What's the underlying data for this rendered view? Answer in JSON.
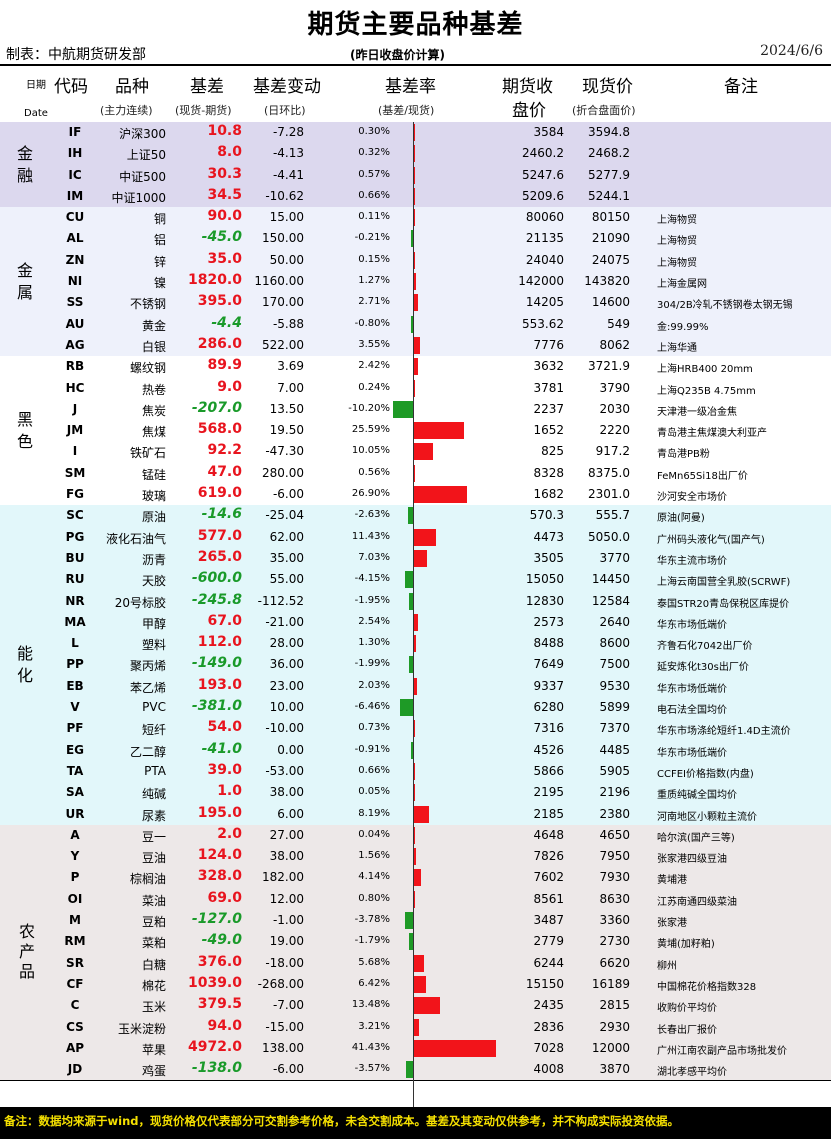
{
  "title": "期货主要品种基差",
  "maker": "制表：中航期货研发部",
  "subtitle": "(昨日收盘价计算)",
  "date": "2024/6/6",
  "header": {
    "date_label": "日期",
    "date_en": "Date",
    "code": "代码",
    "name": "品种",
    "name_sub": "(主力连续)",
    "basis": "基差",
    "basis_sub": "(现货-期货)",
    "chg": "基差变动",
    "chg_sub": "(日环比)",
    "rate": "基差率",
    "rate_sub": "(基差/现货)",
    "fut_1": "期货收",
    "fut_2": "盘价",
    "spot": "现货价",
    "spot_sub": "(折合盘面价)",
    "note": "备注"
  },
  "groups": [
    {
      "name": "金融",
      "bg": "#dcd8ee",
      "rows": [
        {
          "code": "IF",
          "name": "沪深300",
          "basis": "10.8",
          "chg": "-7.28",
          "rate": "0.30%",
          "r": 0.3,
          "fut": "3584",
          "spot": "3594.8",
          "note": ""
        },
        {
          "code": "IH",
          "name": "上证50",
          "basis": "8.0",
          "chg": "-4.13",
          "rate": "0.32%",
          "r": 0.32,
          "fut": "2460.2",
          "spot": "2468.2",
          "note": ""
        },
        {
          "code": "IC",
          "name": "中证500",
          "basis": "30.3",
          "chg": "-4.41",
          "rate": "0.57%",
          "r": 0.57,
          "fut": "5247.6",
          "spot": "5277.9",
          "note": ""
        },
        {
          "code": "IM",
          "name": "中证1000",
          "basis": "34.5",
          "chg": "-10.62",
          "rate": "0.66%",
          "r": 0.66,
          "fut": "5209.6",
          "spot": "5244.1",
          "note": ""
        }
      ]
    },
    {
      "name": "金属",
      "bg": "#eef1fb",
      "rows": [
        {
          "code": "CU",
          "name": "铜",
          "basis": "90.0",
          "chg": "15.00",
          "rate": "0.11%",
          "r": 0.11,
          "fut": "80060",
          "spot": "80150",
          "note": "上海物贸"
        },
        {
          "code": "AL",
          "name": "铝",
          "basis": "-45.0",
          "chg": "150.00",
          "rate": "-0.21%",
          "r": -0.21,
          "fut": "21135",
          "spot": "21090",
          "note": "上海物贸"
        },
        {
          "code": "ZN",
          "name": "锌",
          "basis": "35.0",
          "chg": "50.00",
          "rate": "0.15%",
          "r": 0.15,
          "fut": "24040",
          "spot": "24075",
          "note": "上海物贸"
        },
        {
          "code": "NI",
          "name": "镍",
          "basis": "1820.0",
          "chg": "1160.00",
          "rate": "1.27%",
          "r": 1.27,
          "fut": "142000",
          "spot": "143820",
          "note": "上海金属网"
        },
        {
          "code": "SS",
          "name": "不锈钢",
          "basis": "395.0",
          "chg": "170.00",
          "rate": "2.71%",
          "r": 2.71,
          "fut": "14205",
          "spot": "14600",
          "note": "304/2B冷轧不锈钢卷太钢无锡"
        },
        {
          "code": "AU",
          "name": "黄金",
          "basis": "-4.4",
          "chg": "-5.88",
          "rate": "-0.80%",
          "r": -0.8,
          "fut": "553.62",
          "spot": "549",
          "note": "金:99.99%"
        },
        {
          "code": "AG",
          "name": "白银",
          "basis": "286.0",
          "chg": "522.00",
          "rate": "3.55%",
          "r": 3.55,
          "fut": "7776",
          "spot": "8062",
          "note": "上海华通"
        }
      ]
    },
    {
      "name": "黑色",
      "bg": "#ffffff",
      "rows": [
        {
          "code": "RB",
          "name": "螺纹钢",
          "basis": "89.9",
          "chg": "3.69",
          "rate": "2.42%",
          "r": 2.42,
          "fut": "3632",
          "spot": "3721.9",
          "note": "上海HRB400 20mm"
        },
        {
          "code": "HC",
          "name": "热卷",
          "basis": "9.0",
          "chg": "7.00",
          "rate": "0.24%",
          "r": 0.24,
          "fut": "3781",
          "spot": "3790",
          "note": "上海Q235B 4.75mm"
        },
        {
          "code": "J",
          "name": "焦炭",
          "basis": "-207.0",
          "chg": "13.50",
          "rate": "-10.20%",
          "r": -10.2,
          "fut": "2237",
          "spot": "2030",
          "note": "天津港一级冶金焦"
        },
        {
          "code": "JM",
          "name": "焦煤",
          "basis": "568.0",
          "chg": "19.50",
          "rate": "25.59%",
          "r": 25.59,
          "fut": "1652",
          "spot": "2220",
          "note": "青岛港主焦煤澳大利亚产"
        },
        {
          "code": "I",
          "name": "铁矿石",
          "basis": "92.2",
          "chg": "-47.30",
          "rate": "10.05%",
          "r": 10.05,
          "fut": "825",
          "spot": "917.2",
          "note": "青岛港PB粉"
        },
        {
          "code": "SM",
          "name": "锰硅",
          "basis": "47.0",
          "chg": "280.00",
          "rate": "0.56%",
          "r": 0.56,
          "fut": "8328",
          "spot": "8375.0",
          "note": "FeMn65Si18出厂价"
        },
        {
          "code": "FG",
          "name": "玻璃",
          "basis": "619.0",
          "chg": "-6.00",
          "rate": "26.90%",
          "r": 26.9,
          "fut": "1682",
          "spot": "2301.0",
          "note": "沙河安全市场价"
        }
      ]
    },
    {
      "name": "能化",
      "bg": "#e2f7fa",
      "rows": [
        {
          "code": "SC",
          "name": "原油",
          "basis": "-14.6",
          "chg": "-25.04",
          "rate": "-2.63%",
          "r": -2.63,
          "fut": "570.3",
          "spot": "555.7",
          "note": "原油(阿曼)"
        },
        {
          "code": "PG",
          "name": "液化石油气",
          "basis": "577.0",
          "chg": "62.00",
          "rate": "11.43%",
          "r": 11.43,
          "fut": "4473",
          "spot": "5050.0",
          "note": "广州码头液化气(国产气)"
        },
        {
          "code": "BU",
          "name": "沥青",
          "basis": "265.0",
          "chg": "35.00",
          "rate": "7.03%",
          "r": 7.03,
          "fut": "3505",
          "spot": "3770",
          "note": "华东主流市场价"
        },
        {
          "code": "RU",
          "name": "天胶",
          "basis": "-600.0",
          "chg": "55.00",
          "rate": "-4.15%",
          "r": -4.15,
          "fut": "15050",
          "spot": "14450",
          "note": "上海云南国营全乳胶(SCRWF)"
        },
        {
          "code": "NR",
          "name": "20号标胶",
          "basis": "-245.8",
          "chg": "-112.52",
          "rate": "-1.95%",
          "r": -1.95,
          "fut": "12830",
          "spot": "12584",
          "note": "泰国STR20青岛保税区库提价"
        },
        {
          "code": "MA",
          "name": "甲醇",
          "basis": "67.0",
          "chg": "-21.00",
          "rate": "2.54%",
          "r": 2.54,
          "fut": "2573",
          "spot": "2640",
          "note": "华东市场低端价"
        },
        {
          "code": "L",
          "name": "塑料",
          "basis": "112.0",
          "chg": "28.00",
          "rate": "1.30%",
          "r": 1.3,
          "fut": "8488",
          "spot": "8600",
          "note": "齐鲁石化7042出厂价"
        },
        {
          "code": "PP",
          "name": "聚丙烯",
          "basis": "-149.0",
          "chg": "36.00",
          "rate": "-1.99%",
          "r": -1.99,
          "fut": "7649",
          "spot": "7500",
          "note": "延安炼化t30s出厂价"
        },
        {
          "code": "EB",
          "name": "苯乙烯",
          "basis": "193.0",
          "chg": "23.00",
          "rate": "2.03%",
          "r": 2.03,
          "fut": "9337",
          "spot": "9530",
          "note": "华东市场低端价"
        },
        {
          "code": "V",
          "name": "PVC",
          "basis": "-381.0",
          "chg": "10.00",
          "rate": "-6.46%",
          "r": -6.46,
          "fut": "6280",
          "spot": "5899",
          "note": "电石法全国均价"
        },
        {
          "code": "PF",
          "name": "短纤",
          "basis": "54.0",
          "chg": "-10.00",
          "rate": "0.73%",
          "r": 0.73,
          "fut": "7316",
          "spot": "7370",
          "note": "华东市场涤纶短纤1.4D主流价"
        },
        {
          "code": "EG",
          "name": "乙二醇",
          "basis": "-41.0",
          "chg": "0.00",
          "rate": "-0.91%",
          "r": -0.91,
          "fut": "4526",
          "spot": "4485",
          "note": "华东市场低端价"
        },
        {
          "code": "TA",
          "name": "PTA",
          "basis": "39.0",
          "chg": "-53.00",
          "rate": "0.66%",
          "r": 0.66,
          "fut": "5866",
          "spot": "5905",
          "note": "CCFEI价格指数(内盘)"
        },
        {
          "code": "SA",
          "name": "纯碱",
          "basis": "1.0",
          "chg": "38.00",
          "rate": "0.05%",
          "r": 0.05,
          "fut": "2195",
          "spot": "2196",
          "note": "重质纯碱全国均价"
        },
        {
          "code": "UR",
          "name": "尿素",
          "basis": "195.0",
          "chg": "6.00",
          "rate": "8.19%",
          "r": 8.19,
          "fut": "2185",
          "spot": "2380",
          "note": "河南地区小颗粒主流价"
        }
      ]
    },
    {
      "name": "农产品",
      "bg": "#ede8e8",
      "rows": [
        {
          "code": "A",
          "name": "豆一",
          "basis": "2.0",
          "chg": "27.00",
          "rate": "0.04%",
          "r": 0.04,
          "fut": "4648",
          "spot": "4650",
          "note": "哈尔滨(国产三等)"
        },
        {
          "code": "Y",
          "name": "豆油",
          "basis": "124.0",
          "chg": "38.00",
          "rate": "1.56%",
          "r": 1.56,
          "fut": "7826",
          "spot": "7950",
          "note": "张家港四级豆油"
        },
        {
          "code": "P",
          "name": "棕榈油",
          "basis": "328.0",
          "chg": "182.00",
          "rate": "4.14%",
          "r": 4.14,
          "fut": "7602",
          "spot": "7930",
          "note": "黄埔港"
        },
        {
          "code": "OI",
          "name": "菜油",
          "basis": "69.0",
          "chg": "12.00",
          "rate": "0.80%",
          "r": 0.8,
          "fut": "8561",
          "spot": "8630",
          "note": "江苏南通四级菜油"
        },
        {
          "code": "M",
          "name": "豆粕",
          "basis": "-127.0",
          "chg": "-1.00",
          "rate": "-3.78%",
          "r": -3.78,
          "fut": "3487",
          "spot": "3360",
          "note": "张家港"
        },
        {
          "code": "RM",
          "name": "菜粕",
          "basis": "-49.0",
          "chg": "19.00",
          "rate": "-1.79%",
          "r": -1.79,
          "fut": "2779",
          "spot": "2730",
          "note": "黄埔(加籽粕)"
        },
        {
          "code": "SR",
          "name": "白糖",
          "basis": "376.0",
          "chg": "-18.00",
          "rate": "5.68%",
          "r": 5.68,
          "fut": "6244",
          "spot": "6620",
          "note": "柳州"
        },
        {
          "code": "CF",
          "name": "棉花",
          "basis": "1039.0",
          "chg": "-268.00",
          "rate": "6.42%",
          "r": 6.42,
          "fut": "15150",
          "spot": "16189",
          "note": "中国棉花价格指数328"
        },
        {
          "code": "C",
          "name": "玉米",
          "basis": "379.5",
          "chg": "-7.00",
          "rate": "13.48%",
          "r": 13.48,
          "fut": "2435",
          "spot": "2815",
          "note": "收购价平均价"
        },
        {
          "code": "CS",
          "name": "玉米淀粉",
          "basis": "94.0",
          "chg": "-15.00",
          "rate": "3.21%",
          "r": 3.21,
          "fut": "2836",
          "spot": "2930",
          "note": "长春出厂报价"
        },
        {
          "code": "AP",
          "name": "苹果",
          "basis": "4972.0",
          "chg": "138.00",
          "rate": "41.43%",
          "r": 41.43,
          "fut": "7028",
          "spot": "12000",
          "note": "广州江南农副产品市场批发价"
        },
        {
          "code": "JD",
          "name": "鸡蛋",
          "basis": "-138.0",
          "chg": "-6.00",
          "rate": "-3.57%",
          "r": -3.57,
          "fut": "4008",
          "spot": "3870",
          "note": "湖北孝感平均价"
        }
      ]
    }
  ],
  "footer": "备注：数据均来源于wind，现货价格仅代表部分可交割参考价格，未含交割成本。基差及其变动仅供参考，并不构成实际投资依据。"
}
